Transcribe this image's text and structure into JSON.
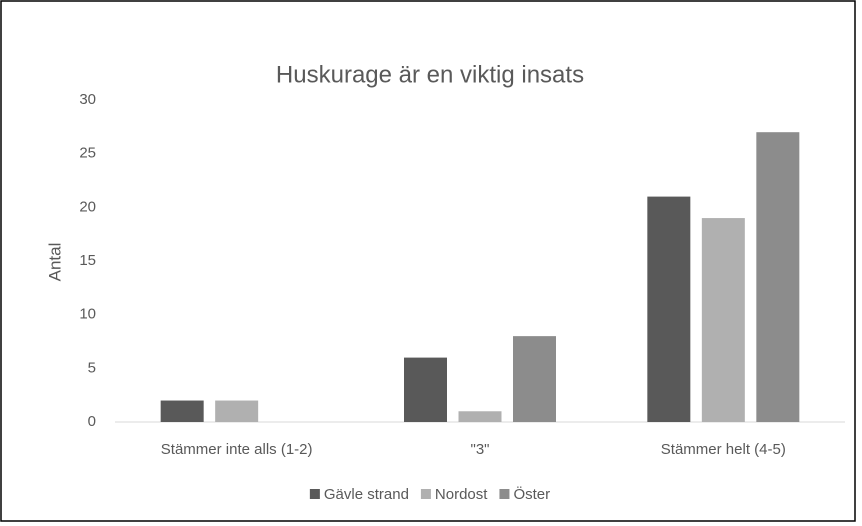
{
  "chart_data": {
    "type": "bar",
    "title": "Huskurage är en viktig insats",
    "y_label": "Antal",
    "categories": [
      "Stämmer inte alls (1-2)",
      "\"3\"",
      "Stämmer helt (4-5)"
    ],
    "series": [
      {
        "name": "Gävle strand",
        "color": "#595959",
        "values": [
          2,
          6,
          21
        ]
      },
      {
        "name": "Nordost",
        "color": "#b0b0b0",
        "values": [
          2,
          1,
          19
        ]
      },
      {
        "name": "Öster",
        "color": "#8c8c8c",
        "values": [
          0,
          8,
          27
        ]
      }
    ],
    "ylim": [
      0,
      30
    ],
    "yticks": [
      0,
      5,
      10,
      15,
      20,
      25,
      30
    ],
    "grid": false,
    "legend": "bottom"
  }
}
